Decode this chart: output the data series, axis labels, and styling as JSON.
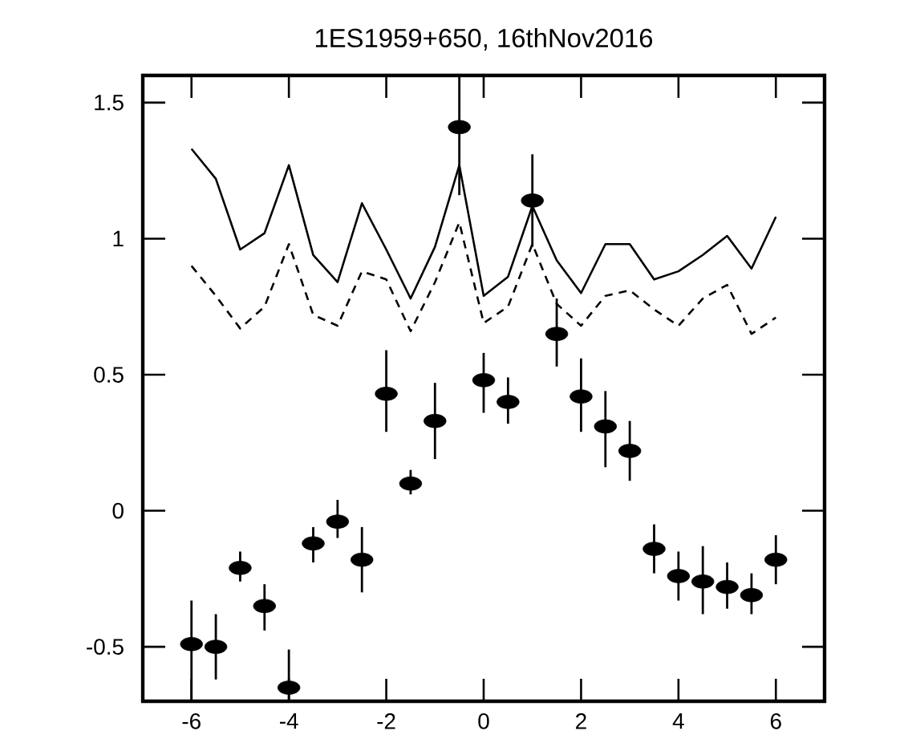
{
  "chart_data": {
    "type": "scatter",
    "title": "1ES1959+650, 16thNov2016",
    "x": [
      -6,
      -5.5,
      -5,
      -4.5,
      -4,
      -3.5,
      -3,
      -2.5,
      -2,
      -1.5,
      -1,
      -0.5,
      0,
      0.5,
      1,
      1.5,
      2,
      2.5,
      3,
      3.5,
      4,
      4.5,
      5,
      5.5,
      6
    ],
    "series": [
      {
        "type": "line",
        "line_style": "solid",
        "marker": "none",
        "color": "#000000",
        "values": [
          1.33,
          1.22,
          0.96,
          1.02,
          1.27,
          0.94,
          0.84,
          1.13,
          0.96,
          0.78,
          0.97,
          1.27,
          0.79,
          0.86,
          1.12,
          0.92,
          0.8,
          0.98,
          0.98,
          0.85,
          0.88,
          0.94,
          1.01,
          0.89,
          1.08
        ]
      },
      {
        "type": "line",
        "line_style": "dashed",
        "marker": "none",
        "color": "#000000",
        "values": [
          0.9,
          0.79,
          0.67,
          0.75,
          0.98,
          0.72,
          0.68,
          0.88,
          0.85,
          0.66,
          0.84,
          1.06,
          0.69,
          0.75,
          0.98,
          0.76,
          0.68,
          0.79,
          0.81,
          0.74,
          0.68,
          0.78,
          0.83,
          0.65,
          0.71
        ]
      },
      {
        "marker": "circle",
        "color": "#000000",
        "values": [
          -0.49,
          -0.5,
          -0.21,
          -0.35,
          -0.65,
          -0.12,
          -0.04,
          -0.18,
          0.43,
          0.1,
          0.33,
          1.41,
          0.48,
          0.4,
          1.14,
          0.65,
          0.42,
          0.31,
          0.22,
          -0.14,
          -0.24,
          -0.26,
          -0.28,
          -0.31,
          -0.18
        ],
        "errors": [
          [
            -0.7,
            -0.33
          ],
          [
            -0.62,
            -0.38
          ],
          [
            -0.26,
            -0.15
          ],
          [
            -0.44,
            -0.27
          ],
          [
            -0.7,
            -0.51
          ],
          [
            -0.19,
            -0.06
          ],
          [
            -0.1,
            0.04
          ],
          [
            -0.3,
            -0.06
          ],
          [
            0.29,
            0.59
          ],
          [
            0.06,
            0.15
          ],
          [
            0.19,
            0.47
          ],
          [
            1.16,
            1.6
          ],
          [
            0.36,
            0.58
          ],
          [
            0.32,
            0.49
          ],
          [
            0.97,
            1.31
          ],
          [
            0.53,
            0.78
          ],
          [
            0.29,
            0.56
          ],
          [
            0.16,
            0.44
          ],
          [
            0.11,
            0.33
          ],
          [
            -0.23,
            -0.05
          ],
          [
            -0.33,
            -0.15
          ],
          [
            -0.38,
            -0.13
          ],
          [
            -0.36,
            -0.19
          ],
          [
            -0.38,
            -0.23
          ],
          [
            -0.27,
            -0.09
          ]
        ]
      }
    ],
    "xlim": [
      -7,
      7
    ],
    "ylim": [
      -0.7,
      1.6
    ],
    "xticks": [
      -6,
      -4,
      -2,
      0,
      2,
      4,
      6
    ],
    "yticks": [
      -0.5,
      0,
      0.5,
      1,
      1.5
    ]
  }
}
